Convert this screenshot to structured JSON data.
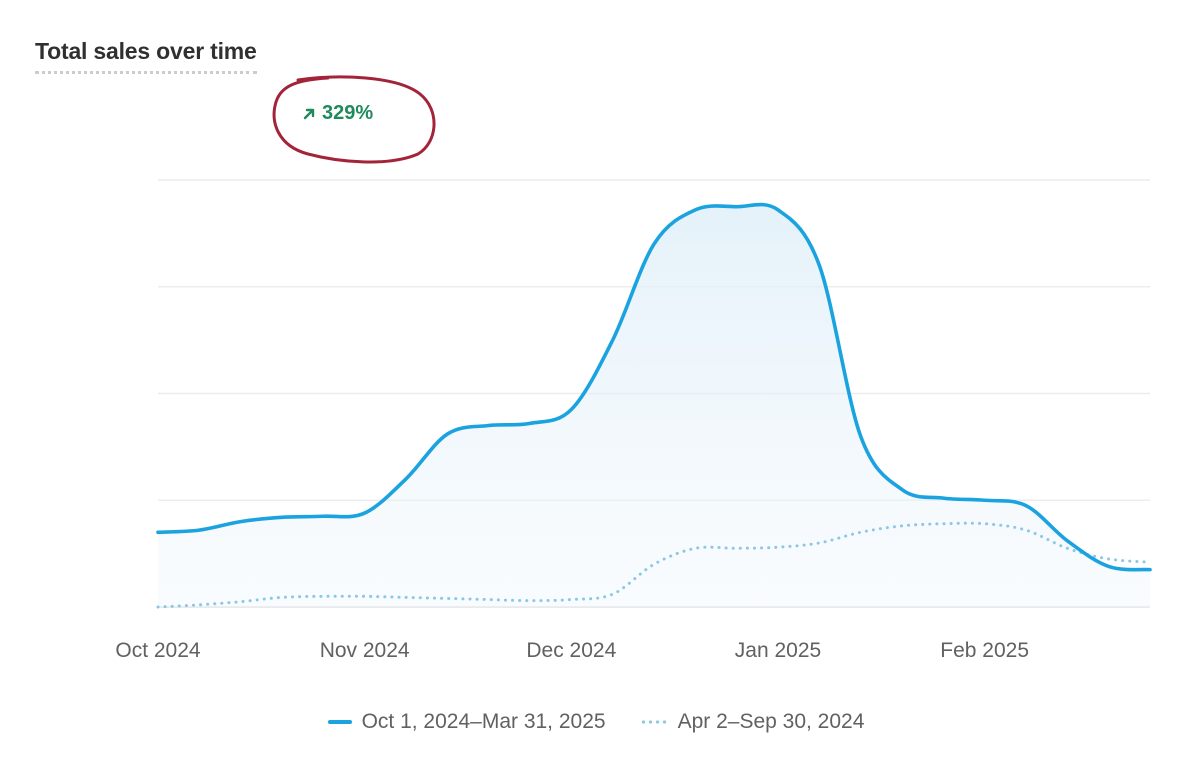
{
  "header": {
    "title": "Total sales over time",
    "delta": "329%",
    "delta_color": "#1f8a5b"
  },
  "chart_data": {
    "type": "line",
    "title": "Total sales over time",
    "xlabel": "",
    "ylabel": "",
    "x_tick_labels": [
      "Oct 2024",
      "Nov 2024",
      "Dec 2024",
      "Jan 2025",
      "Feb 2025"
    ],
    "x_tick_index": [
      0,
      5,
      10,
      15,
      20
    ],
    "ylim": [
      0,
      4
    ],
    "grid": true,
    "legend_position": "bottom",
    "series": [
      {
        "name": "Oct 1, 2024–Mar 31, 2025",
        "style": "solid",
        "color": "#1aa3df",
        "values": [
          0.7,
          0.72,
          0.8,
          0.84,
          0.85,
          0.88,
          1.2,
          1.62,
          1.7,
          1.72,
          1.85,
          2.5,
          3.4,
          3.72,
          3.75,
          3.72,
          3.2,
          1.6,
          1.1,
          1.02,
          1.0,
          0.95,
          0.62,
          0.38,
          0.35
        ]
      },
      {
        "name": "Apr 2–Sep 30, 2024",
        "style": "dotted",
        "color": "#8cc8e6",
        "values": [
          0.0,
          0.02,
          0.05,
          0.09,
          0.1,
          0.1,
          0.09,
          0.08,
          0.07,
          0.06,
          0.07,
          0.12,
          0.4,
          0.55,
          0.55,
          0.56,
          0.6,
          0.7,
          0.76,
          0.78,
          0.78,
          0.72,
          0.55,
          0.45,
          0.42
        ]
      }
    ]
  }
}
